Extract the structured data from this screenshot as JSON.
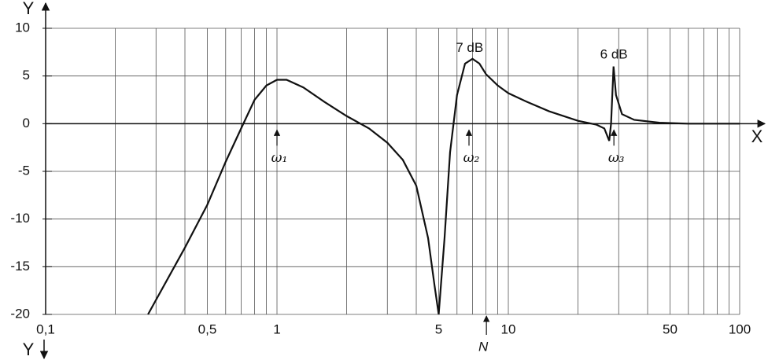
{
  "chart_data": {
    "type": "line",
    "x_label": "X",
    "y_label": "Y",
    "y_label_bottom": "Y",
    "xlog": true,
    "xlim": [
      0.1,
      100
    ],
    "ylim": [
      -20,
      10
    ],
    "xticks": [
      {
        "value": 0.1,
        "label": "0,1"
      },
      {
        "value": 0.5,
        "label": "0,5"
      },
      1,
      5,
      10,
      50,
      100
    ],
    "xgrid": [
      0.2,
      0.3,
      0.4,
      0.6,
      0.7,
      0.8,
      0.9,
      2,
      3,
      4,
      6,
      7,
      8,
      9,
      20,
      30,
      40,
      60,
      70,
      80,
      90
    ],
    "yticks": [
      10,
      5,
      0,
      -5,
      -10,
      -15,
      -20
    ],
    "grid": true,
    "x": [
      0.277,
      0.4,
      0.5,
      0.6,
      0.7,
      0.8,
      0.9,
      1.0,
      1.1,
      1.3,
      1.6,
      2,
      2.5,
      3,
      3.5,
      4,
      4.5,
      4.8,
      5,
      5.3,
      5.6,
      6,
      6.5,
      7,
      7.5,
      8,
      9,
      10,
      12,
      15,
      20,
      24,
      26,
      27.3,
      27.8,
      28.5,
      29.2,
      31,
      35,
      45,
      60,
      100
    ],
    "series": [
      {
        "color": "#111111",
        "values": [
          -20,
          -13,
          -8.5,
          -4,
          -0.5,
          2.5,
          4,
          4.6,
          4.6,
          3.8,
          2.3,
          0.8,
          -0.5,
          -2,
          -3.8,
          -6.5,
          -12,
          -17,
          -20,
          -12,
          -3,
          3,
          6.3,
          6.8,
          6.3,
          5.2,
          4,
          3.2,
          2.3,
          1.3,
          0.3,
          -0.1,
          -0.5,
          -1.8,
          0,
          6,
          3,
          1,
          0.4,
          0.1,
          0,
          0
        ]
      }
    ],
    "annotations": [
      {
        "text": "ω₁",
        "x": 1,
        "kind": "arrow"
      },
      {
        "text": "ω₂",
        "x": 6.76,
        "kind": "arrow"
      },
      {
        "text": "ω₃",
        "x": 28.6,
        "kind": "arrow"
      },
      {
        "text": "N",
        "x": 8.04,
        "kind": "bottom-arrow"
      },
      {
        "text": "7 dB",
        "x": 6.8,
        "y": 7.9,
        "kind": "label"
      },
      {
        "text": "6 dB",
        "x": 28.6,
        "y": 7.2,
        "kind": "label"
      }
    ]
  }
}
